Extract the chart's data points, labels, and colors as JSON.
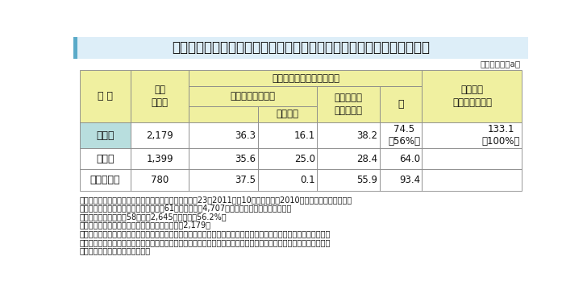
{
  "title": "表４－４　都市農家１戸当たりの経営耕地面積（アンケート調査結果）",
  "unit_label": "（単位：戸、a）",
  "header_bg": "#f0f0a0",
  "row_highlight_bg": "#b8dede",
  "row_normal_bg": "#ffffff",
  "title_bar_color": "#5aaac8",
  "title_bg": "#ddeef8",
  "rows": [
    {
      "label": "全　体",
      "values": [
        "2,179",
        "36.3",
        "16.1",
        "38.2",
        "74.5\n（56%）",
        "133.1\n（100%）"
      ],
      "highlight": true
    },
    {
      "label": "特定市",
      "values": [
        "1,399",
        "35.6",
        "25.0",
        "28.4",
        "64.0",
        ""
      ],
      "highlight": false
    },
    {
      "label": "特定市以外",
      "values": [
        "780",
        "37.5",
        "0.1",
        "55.9",
        "93.4",
        ""
      ],
      "highlight": false
    }
  ],
  "footnotes": [
    "資料：農林水産省「都市農業に関する実態調査」（平成23（2011）年10月公表）、「2010年世界農林業センサス」",
    "　注：１）市街化区域内に農地を有する61市区町の農家4,707戸を対象としたアンケート調査",
    "　　　　（有効回答数58市区町2,645戸、回答率56.2%）",
    "　　　２）経営耕地面積についての回答農家数は2,179戸",
    "　　　３）特定市は、三大都市圏特定市（東京都の特別区、三大都市圏（首都圏、近畿圏、中部圏）にある政令指定都",
    "　　　　　市及び既成市街地、近郊整備地帯等に所在する市）を、特定市以外は、三大都市圏特定市以外で市街化区域",
    "　　　　　内農地を有する市町村"
  ]
}
